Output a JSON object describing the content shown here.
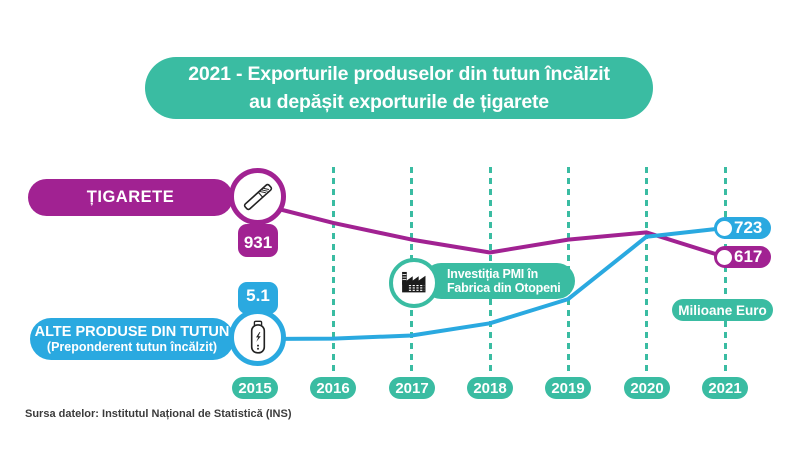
{
  "title": {
    "line1": "2021 - Exporturile produselor din tutun încălzit",
    "line2": "au depășit exporturile de țigarete"
  },
  "labels": {
    "cigarettes": "ȚIGARETE",
    "other_line1": "ALTE PRODUSE DIN TUTUN",
    "other_line2": "(Preponderent tutun încălzit)"
  },
  "tags": {
    "cig_2015": "931",
    "other_2015": "5.1",
    "other_2021": "723",
    "cig_2021": "617"
  },
  "annotation": {
    "line1": "Investiția PMI în",
    "line2": "Fabrica din Otopeni"
  },
  "unit_label": "Milioane Euro",
  "years": [
    "2015",
    "2016",
    "2017",
    "2018",
    "2019",
    "2020",
    "2021"
  ],
  "source": "Sursa datelor: Institutul Național de Statistică (INS)",
  "icons": {
    "cigarette": "cigarette-icon",
    "heated_tobacco_device": "e-cigarette-icon",
    "factory": "factory-icon"
  },
  "colors": {
    "teal": "#3ABCA2",
    "magenta": "#A12292",
    "blue": "#2AA9E0",
    "text_dark": "#3B3B3B"
  },
  "chart_data": {
    "type": "line",
    "title": "2021 - Exporturile produselor din tutun încălzit au depășit exporturile de țigarete",
    "unit": "Milioane Euro",
    "x": [
      2015,
      2016,
      2017,
      2018,
      2019,
      2020,
      2021
    ],
    "series": [
      {
        "name": "Țigarete",
        "color": "#A12292",
        "values": [
          931,
          795,
          680,
          590,
          680,
          730,
          617
        ]
      },
      {
        "name": "Alte produse din tutun (preponderent tutun încălzit)",
        "color": "#2AA9E0",
        "values": [
          5.1,
          8,
          30,
          115,
          285,
          700,
          723
        ]
      }
    ],
    "labeled_points": [
      {
        "series": "Țigarete",
        "year": 2015,
        "value": 931
      },
      {
        "series": "Alte produse din tutun",
        "year": 2015,
        "value": 5.1
      },
      {
        "series": "Alte produse din tutun",
        "year": 2021,
        "value": 723
      },
      {
        "series": "Țigarete",
        "year": 2021,
        "value": 617
      }
    ],
    "annotation": "Investiția PMI în Fabrica din Otopeni",
    "legend_position": "left",
    "grid": "vertical-dashed"
  }
}
